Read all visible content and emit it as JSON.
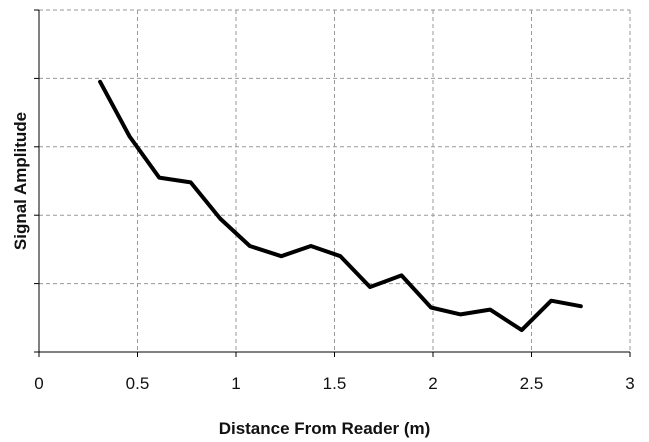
{
  "chart_data": {
    "type": "line",
    "title": "",
    "xlabel": "Distance From Reader (m)",
    "ylabel": "Signal Amplitude",
    "xlim": [
      0,
      3
    ],
    "ylim": [
      0,
      5
    ],
    "x_ticks": [
      0,
      0.5,
      1,
      1.5,
      2,
      2.5,
      3
    ],
    "x_tick_labels": [
      "0",
      "0.5",
      "1",
      "1.5",
      "2",
      "2.5",
      "3"
    ],
    "y_tick_labels_visible": false,
    "grid": true,
    "grid_style": "dashed",
    "legend": "none",
    "line_color": "#000000",
    "grid_color": "#999999",
    "series": [
      {
        "x": [
          0.31,
          0.46,
          0.61,
          0.77,
          0.92,
          1.07,
          1.23,
          1.38,
          1.53,
          1.68,
          1.84,
          1.99,
          2.14,
          2.29,
          2.45,
          2.6,
          2.75
        ],
        "y": [
          3.95,
          3.15,
          2.55,
          2.48,
          1.95,
          1.55,
          1.4,
          1.55,
          1.4,
          0.95,
          1.12,
          0.65,
          0.55,
          0.62,
          0.32,
          0.75,
          0.67
        ]
      }
    ]
  }
}
